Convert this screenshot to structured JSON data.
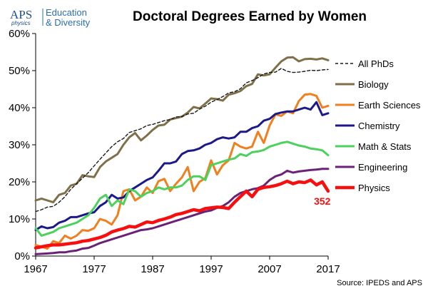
{
  "logo": {
    "name": "APS",
    "sub": "physics",
    "line1": "Education",
    "line2": "& Diversity"
  },
  "source": "Source: IPEDS and APS",
  "colors": {
    "all_phds": "#1a1a1a",
    "biology": "#7f7049",
    "earth": "#f07f1e",
    "chemistry": "#1b1a88",
    "math": "#4cd15e",
    "engineering": "#6a2276",
    "physics": "#f70f0f"
  },
  "chart_data": {
    "type": "line",
    "title": "Doctoral Degrees Earned by Women",
    "xlabel": "",
    "ylabel": "",
    "xlim": [
      1967,
      2017
    ],
    "ylim": [
      0,
      60
    ],
    "x_ticks": [
      "1967",
      "1977",
      "1987",
      "1997",
      "2007",
      "2017"
    ],
    "y_ticks": [
      "0%",
      "10%",
      "20%",
      "30%",
      "40%",
      "50%",
      "60%"
    ],
    "grid": false,
    "legend_position": "right",
    "annotation": {
      "text": "352",
      "x": 2016,
      "y": 16.5
    },
    "x": [
      1967,
      1968,
      1969,
      1970,
      1971,
      1972,
      1973,
      1974,
      1975,
      1976,
      1977,
      1978,
      1979,
      1980,
      1981,
      1982,
      1983,
      1984,
      1985,
      1986,
      1987,
      1988,
      1989,
      1990,
      1991,
      1992,
      1993,
      1994,
      1995,
      1996,
      1997,
      1998,
      1999,
      2000,
      2001,
      2002,
      2003,
      2004,
      2005,
      2006,
      2007,
      2008,
      2009,
      2010,
      2011,
      2012,
      2013,
      2014,
      2015,
      2016,
      2017
    ],
    "series": [
      {
        "name": "All PhDs",
        "dashed": true,
        "values": [
          12,
          12.5,
          13.2,
          13.4,
          14.5,
          16,
          18,
          19.5,
          21,
          22.5,
          24.3,
          26.1,
          27.8,
          29.5,
          30.8,
          31.7,
          33.3,
          33.8,
          34.3,
          35.2,
          35.5,
          36,
          36.5,
          36.8,
          37.5,
          37.6,
          38.3,
          38.5,
          39.6,
          40.4,
          41.5,
          42.2,
          43,
          44,
          44.3,
          45.1,
          46.7,
          47.3,
          48.1,
          49.1,
          49.5,
          49.6,
          50.6,
          49.8,
          49.5,
          49.6,
          49.8,
          50.1,
          50,
          50.2,
          50.3
        ]
      },
      {
        "name": "Biology",
        "values": [
          15,
          15.5,
          15,
          14.5,
          16.5,
          17,
          19,
          19.5,
          21.8,
          21.5,
          21.3,
          24,
          25.5,
          26.5,
          27.5,
          30,
          32,
          33.2,
          31.2,
          32.5,
          34,
          35.2,
          35.4,
          36.8,
          37.2,
          37.6,
          38.7,
          40.2,
          39.8,
          41.1,
          42.5,
          42.3,
          41.9,
          43.5,
          43.9,
          44.5,
          45.8,
          46.4,
          49,
          48.7,
          49,
          50.8,
          52.5,
          53.5,
          53.6,
          52.5,
          53.1,
          53.2,
          53,
          53.3,
          52.8
        ]
      },
      {
        "name": "Earth Sciences",
        "values": [
          3,
          2.5,
          2,
          4,
          3.5,
          5.5,
          4.7,
          5.5,
          7,
          6.8,
          7.5,
          10,
          9.5,
          8.5,
          11,
          17.5,
          18,
          15,
          16,
          18.5,
          17,
          20.2,
          20.8,
          17.5,
          19.5,
          21.2,
          24,
          17.5,
          20,
          21,
          25.8,
          22,
          24.5,
          25.8,
          30.5,
          29.5,
          29,
          29.5,
          33.5,
          30.5,
          35.2,
          38.2,
          37.8,
          39,
          38.5,
          41.8,
          43.5,
          43.7,
          43.2,
          40,
          40.5
        ]
      },
      {
        "name": "Chemistry",
        "values": [
          7,
          8,
          7.5,
          7.8,
          9,
          9.5,
          10.5,
          10.5,
          11,
          11.5,
          11.8,
          13.5,
          14.5,
          16.5,
          15.5,
          15.8,
          17.5,
          18.5,
          19.5,
          20.5,
          21.2,
          23,
          25,
          25,
          25.5,
          27.5,
          28.3,
          28.5,
          29,
          30,
          30.5,
          31.5,
          32,
          31.7,
          32,
          33.5,
          33.5,
          34.5,
          35,
          36.5,
          37,
          38.3,
          38.7,
          39,
          39,
          39.5,
          40,
          39.5,
          41.5,
          38,
          38.5
        ]
      },
      {
        "name": "Math & Stats",
        "values": [
          7.5,
          5.5,
          6,
          6.5,
          7.5,
          8,
          8.5,
          9,
          10,
          11,
          13,
          15.5,
          16.5,
          13.5,
          15,
          14,
          18,
          17.5,
          16,
          17,
          17.5,
          18.5,
          18,
          18.5,
          18.5,
          19,
          20.5,
          21.5,
          21.5,
          20.5,
          24.5,
          25,
          25.5,
          26,
          26.3,
          27.5,
          27,
          28,
          28.2,
          28.6,
          29.5,
          30,
          30.5,
          30.8,
          30.3,
          29.8,
          29.5,
          29,
          28.8,
          28.5,
          27.2
        ]
      },
      {
        "name": "Engineering",
        "values": [
          0.5,
          0.6,
          0.7,
          0.8,
          1,
          1,
          1.3,
          1.5,
          2,
          2.2,
          2.8,
          3.5,
          4,
          4.5,
          5,
          5.5,
          6,
          6.5,
          7,
          7.2,
          7.5,
          8,
          8.5,
          9,
          9.5,
          10,
          10.5,
          11,
          11.5,
          12,
          12.3,
          13,
          13.5,
          14.5,
          16,
          17,
          17.5,
          18,
          18.3,
          19,
          20.5,
          21.5,
          22,
          23,
          22.5,
          22.8,
          23,
          23.2,
          23.3,
          23.5,
          23.5
        ]
      },
      {
        "name": "Physics",
        "values": [
          2.2,
          2.5,
          2.8,
          3,
          3,
          3.2,
          3.4,
          3.6,
          4,
          4.2,
          4.6,
          5,
          5.6,
          6.5,
          7,
          7.4,
          8,
          7.8,
          8.5,
          9.2,
          9,
          9.6,
          10,
          10.5,
          11.2,
          11.5,
          12,
          12.5,
          12.2,
          12.8,
          13,
          13.2,
          13.1,
          12.8,
          14.5,
          16,
          17.5,
          16,
          18,
          18.5,
          18.7,
          19,
          19.5,
          20.2,
          19.5,
          20,
          19.8,
          20.5,
          19.2,
          20,
          17.5
        ]
      }
    ]
  }
}
